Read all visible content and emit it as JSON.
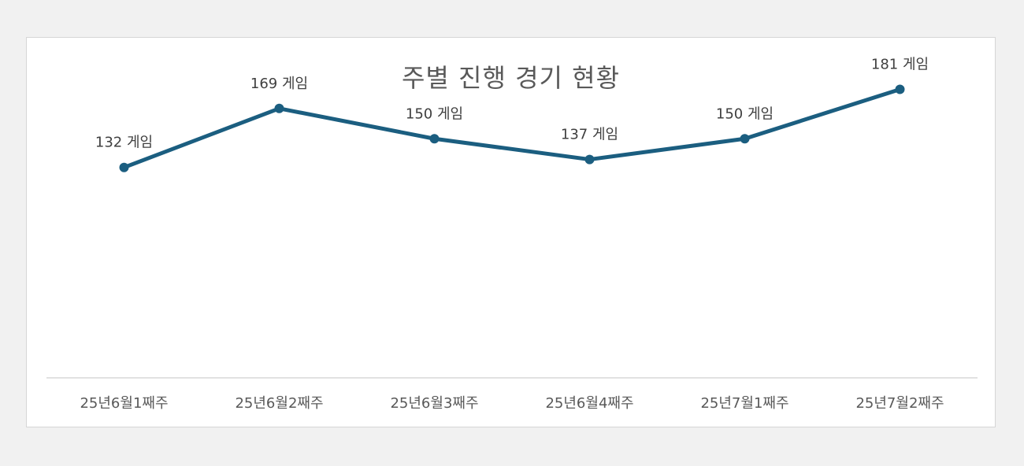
{
  "chart_data": {
    "type": "line",
    "title": "주별 진행 경기 현황",
    "categories": [
      "25년6월1째주",
      "25년6월2째주",
      "25년6월3째주",
      "25년6월4째주",
      "25년7월1째주",
      "25년7월2째주"
    ],
    "series": [
      {
        "values": [
          132,
          169,
          150,
          137,
          150,
          181
        ],
        "color": "#1b5e80"
      }
    ],
    "data_label_suffix": " 게임",
    "data_labels": [
      "132 게임",
      "169 게임",
      "150 게임",
      "137 게임",
      "150 게임",
      "181 게임"
    ],
    "xlabel": "",
    "ylabel": "",
    "ylim": [
      0,
      200
    ],
    "grid": false,
    "legend": "none",
    "axis_color": "#d9d9d9"
  }
}
